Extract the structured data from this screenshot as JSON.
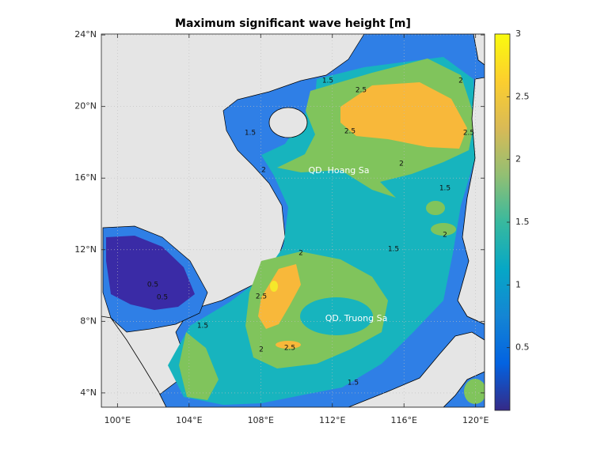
{
  "title": "Maximum significant wave height [m]",
  "map": {
    "xlim": [
      99.1,
      120.5
    ],
    "ylim": [
      3.2,
      24.05
    ],
    "grid": true,
    "xticks": [
      {
        "value": 100,
        "label": "100°E"
      },
      {
        "value": 104,
        "label": "104°E"
      },
      {
        "value": 108,
        "label": "108°E"
      },
      {
        "value": 112,
        "label": "112°E"
      },
      {
        "value": 116,
        "label": "116°E"
      },
      {
        "value": 120,
        "label": "120°E"
      }
    ],
    "yticks": [
      {
        "value": 4,
        "label": "4°N"
      },
      {
        "value": 8,
        "label": "8°N"
      },
      {
        "value": 12,
        "label": "12°N"
      },
      {
        "value": 16,
        "label": "16°N"
      },
      {
        "value": 20,
        "label": "20°N"
      },
      {
        "value": 24,
        "label": "24°N"
      }
    ]
  },
  "colorbar": {
    "clim": [
      0,
      3
    ],
    "ticks": [
      0.5,
      1,
      1.5,
      2,
      2.5,
      3
    ],
    "colors": [
      "#352a87",
      "#0363e1",
      "#1485d4",
      "#06a7c6",
      "#38b99e",
      "#92bf73",
      "#d9ba56",
      "#fcce2e",
      "#f9fb0e"
    ]
  },
  "annotations": [
    "QD. Hoang Sa",
    "QD. Truong Sa"
  ],
  "contour_labels": [
    2.5,
    2,
    1.5,
    2,
    2,
    1.5,
    1.5,
    2,
    0.5,
    0.5,
    2.5,
    2.5,
    1.5,
    2,
    1.5,
    2,
    1.5,
    2.5,
    2.5
  ]
}
